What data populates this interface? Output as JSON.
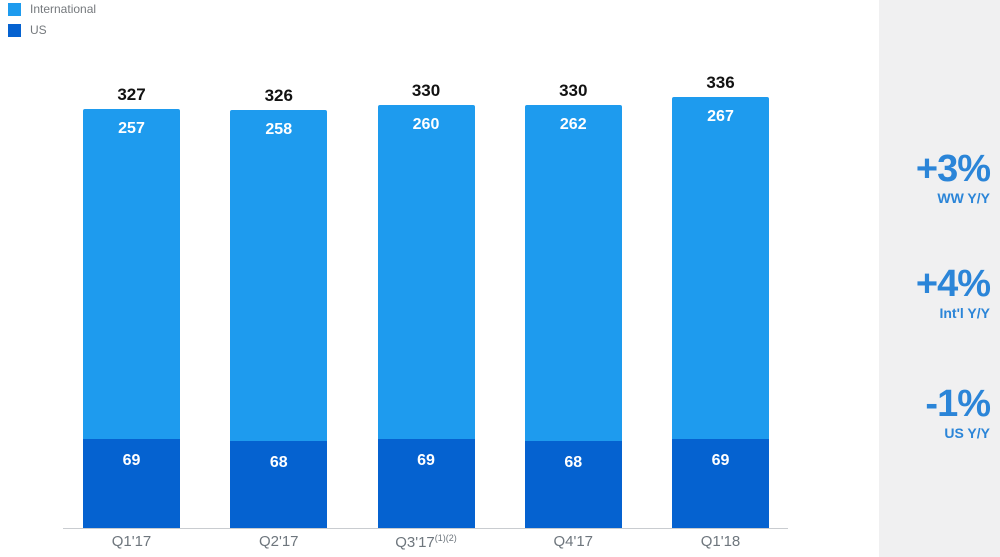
{
  "legend": {
    "items": [
      {
        "label": "International",
        "color": "#1e9bee"
      },
      {
        "label": "US",
        "color": "#0562d0"
      }
    ]
  },
  "chart_data": {
    "type": "bar",
    "stacked": true,
    "title": "",
    "xlabel": "",
    "ylabel": "",
    "grid": false,
    "legend_position": "top-left",
    "categories": [
      "Q1'17",
      "Q2'17",
      "Q3'17",
      "Q4'17",
      "Q1'18"
    ],
    "category_superscripts": [
      "",
      "",
      "(1)(2)",
      "",
      ""
    ],
    "series": [
      {
        "name": "US",
        "color": "#0562d0",
        "values": [
          69,
          68,
          69,
          68,
          69
        ]
      },
      {
        "name": "International",
        "color": "#1e9bee",
        "values": [
          257,
          258,
          260,
          262,
          267
        ]
      }
    ],
    "totals": [
      327,
      326,
      330,
      330,
      336
    ],
    "ylim": [
      0,
      336
    ]
  },
  "stats_panel": {
    "background": "#f0f0f1",
    "accent": "#2b85d8",
    "stats": [
      {
        "value": "+3%",
        "label": "WW Y/Y"
      },
      {
        "value": "+4%",
        "label": "Int'l Y/Y"
      },
      {
        "value": "-1%",
        "label": "US Y/Y"
      }
    ]
  },
  "colors": {
    "total_label": "#121212",
    "axis_line": "#c9ccd0",
    "axis_label": "#6e767d",
    "legend_label": "#75797d",
    "bar_value_label": "#ffffff"
  }
}
